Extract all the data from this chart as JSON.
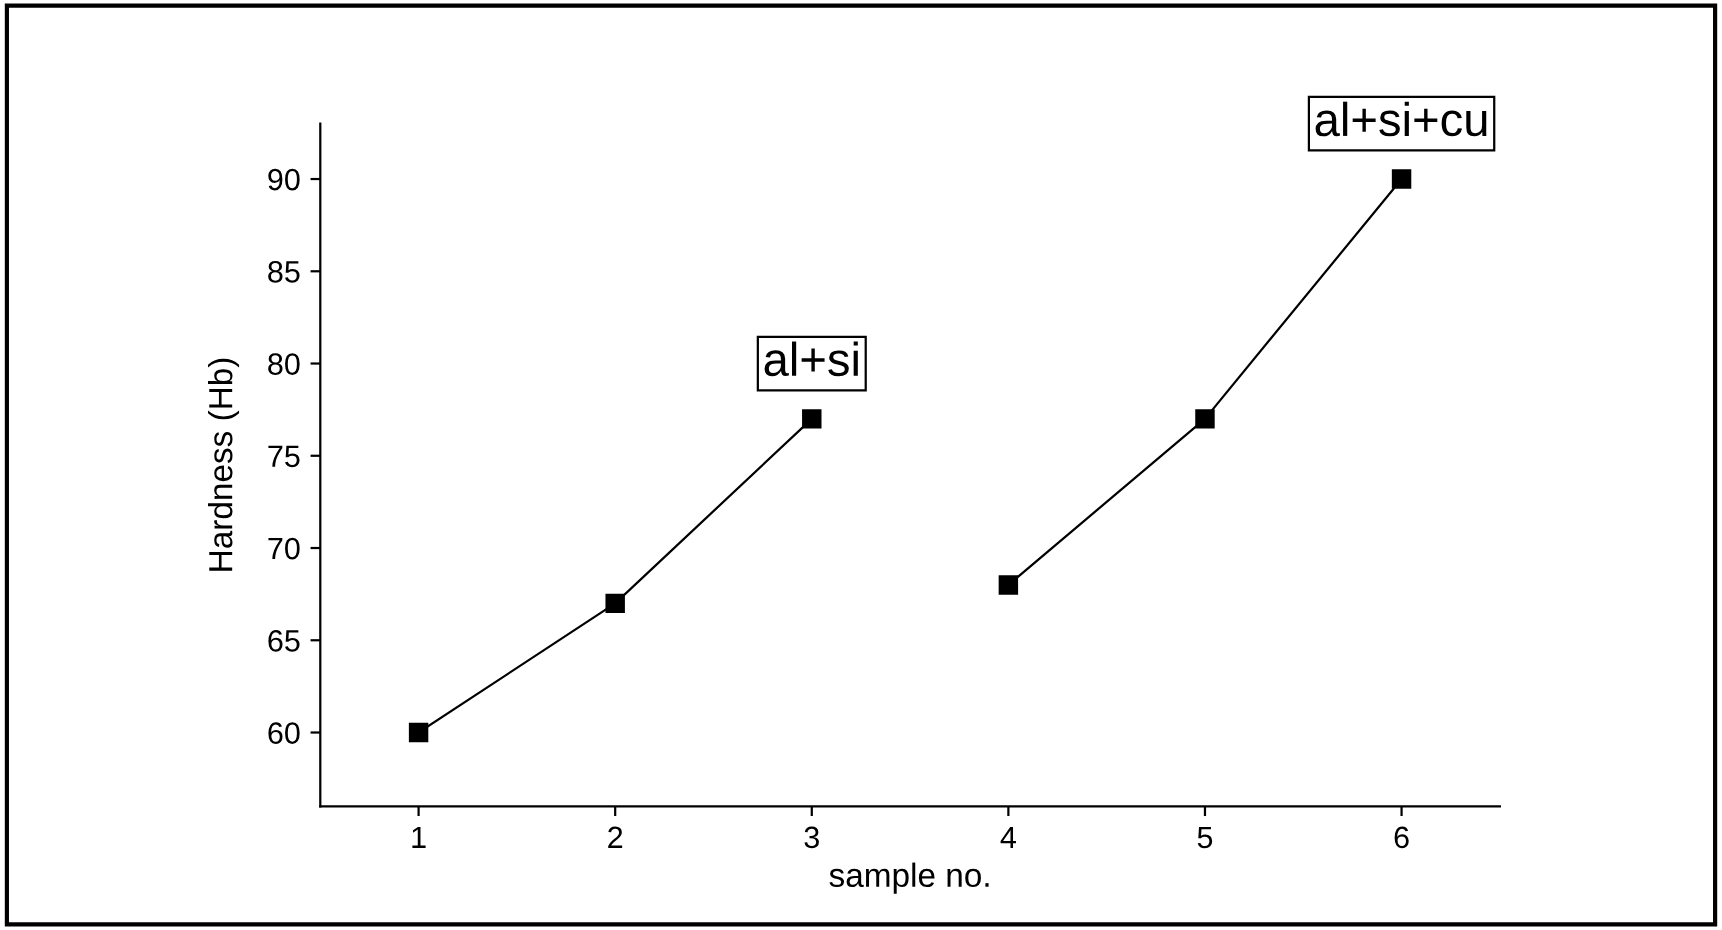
{
  "chart_data": {
    "type": "line",
    "xlabel": "sample no.",
    "ylabel": "Hardness (Hb)",
    "series": [
      {
        "color": "#000000",
        "x": [
          1,
          2,
          3
        ],
        "values": [
          60,
          67,
          77
        ]
      },
      {
        "color": "#000000",
        "x": [
          4,
          5,
          6
        ],
        "values": [
          68,
          77,
          90
        ]
      }
    ],
    "annotations": [
      {
        "text": "al+si",
        "x": 3,
        "y": 77
      },
      {
        "text": "al+si+cu",
        "x": 6,
        "y": 90
      }
    ],
    "xlim": [
      0.5,
      6.5
    ],
    "xticks": [
      1,
      2,
      3,
      4,
      5,
      6
    ],
    "ylim": [
      56,
      93
    ],
    "yticks": [
      60,
      65,
      70,
      75,
      80,
      85,
      90
    ],
    "marker": "square",
    "line_style": "solid",
    "grid": false,
    "legend": false
  }
}
